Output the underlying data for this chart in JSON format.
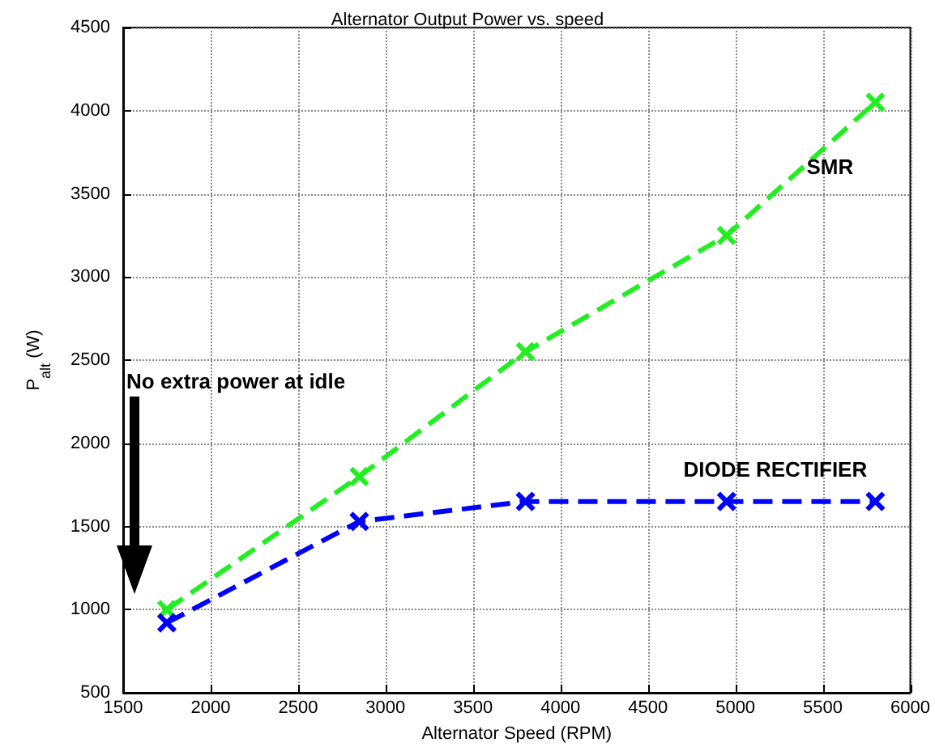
{
  "chart_data": {
    "type": "line",
    "title": "Alternator Output Power vs. speed",
    "xlabel": "Alternator Speed (RPM)",
    "ylabel": "P$_{alt}$ (W)",
    "x": [
      1750,
      2850,
      3800,
      4950,
      5800
    ],
    "series": [
      {
        "name": "SMR",
        "color": "#22ee22",
        "values": [
          1000,
          1800,
          2550,
          3250,
          4050
        ]
      },
      {
        "name": "DIODE RECTIFIER",
        "color": "#0000ff",
        "values": [
          920,
          1530,
          1650,
          1650,
          1650
        ]
      }
    ],
    "annotations": [
      "No extra power at idle"
    ],
    "xlim": [
      1500,
      6000
    ],
    "xticks": [
      1500,
      2000,
      2500,
      3000,
      3500,
      4000,
      4500,
      5000,
      5500,
      6000
    ],
    "ylim": [
      500,
      4500
    ],
    "yticks": [
      500,
      1000,
      1500,
      2000,
      2500,
      3000,
      3500,
      4000,
      4500
    ],
    "grid": true,
    "marker": "cross",
    "line_style": "dashed",
    "legend": false
  }
}
